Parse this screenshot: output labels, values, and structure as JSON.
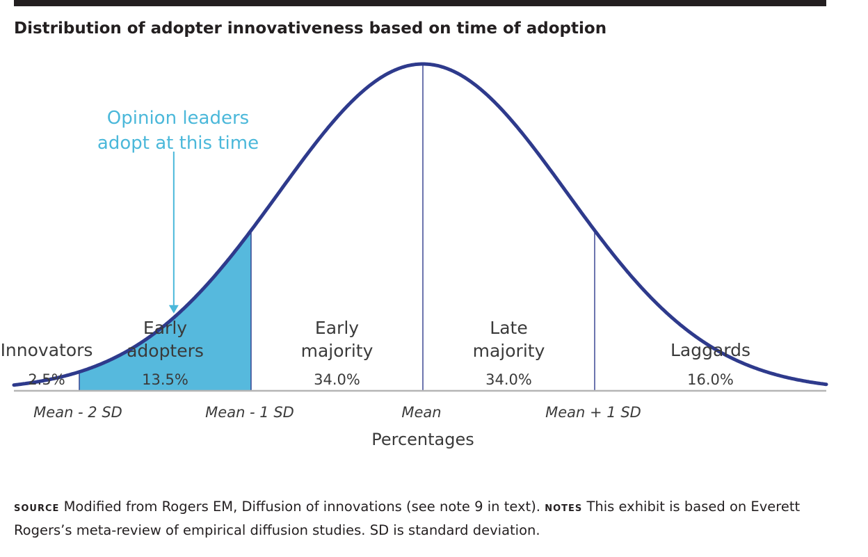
{
  "title": "Distribution of adopter innovativeness based on time of adoption",
  "colors": {
    "curve": "#2e3a8c",
    "fill": "#56b9dd",
    "annotation": "#4bb8da",
    "text": "#3a3a3a",
    "axis": "#b5b5b5"
  },
  "chart_data": {
    "type": "area",
    "distribution": "normal",
    "xlabel": "Percentages",
    "x_ticks": [
      "Mean - 2 SD",
      "Mean - 1 SD",
      "Mean",
      "Mean + 1 SD"
    ],
    "categories": [
      {
        "name": "Innovators",
        "lines": [
          "Innovators"
        ],
        "percent": "2.5%",
        "value": 2.5,
        "from_sd": -3.5,
        "to_sd": -2,
        "highlighted": false
      },
      {
        "name": "Early adopters",
        "lines": [
          "Early",
          "adopters"
        ],
        "percent": "13.5%",
        "value": 13.5,
        "from_sd": -2,
        "to_sd": -1,
        "highlighted": true
      },
      {
        "name": "Early majority",
        "lines": [
          "Early",
          "majority"
        ],
        "percent": "34.0%",
        "value": 34.0,
        "from_sd": -1,
        "to_sd": 0,
        "highlighted": false
      },
      {
        "name": "Late majority",
        "lines": [
          "Late",
          "majority"
        ],
        "percent": "34.0%",
        "value": 34.0,
        "from_sd": 0,
        "to_sd": 1,
        "highlighted": false
      },
      {
        "name": "Laggards",
        "lines": [
          "Laggards"
        ],
        "percent": "16.0%",
        "value": 16.0,
        "from_sd": 1,
        "to_sd": 3.5,
        "highlighted": false
      }
    ],
    "annotation": {
      "lines": [
        "Opinion leaders",
        "adopt at this time"
      ],
      "points_to_sd": -1.45
    }
  },
  "footer": {
    "source_label": "source",
    "source_text": " Modified from Rogers EM, Diffusion of innovations (see note 9 in text). ",
    "notes_label": "notes",
    "notes_text": " This exhibit is based on Everett Rogers’s meta-review of empirical diffusion studies. SD is standard deviation."
  }
}
